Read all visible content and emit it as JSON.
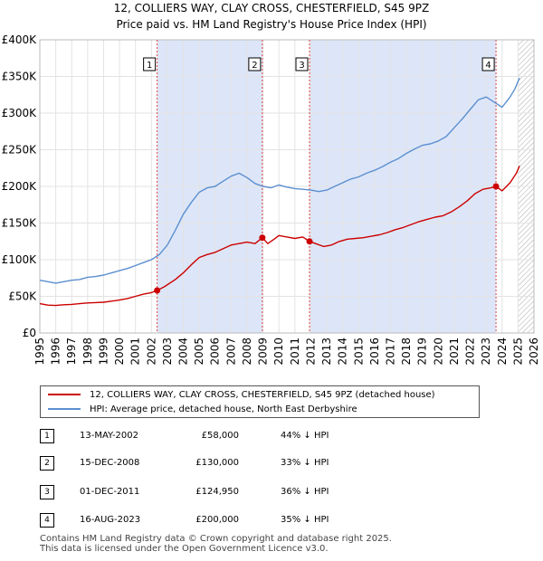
{
  "title_line1": "12, COLLIERS WAY, CLAY CROSS, CHESTERFIELD, S45 9PZ",
  "title_line2": "Price paid vs. HM Land Registry's House Price Index (HPI)",
  "colors": {
    "property": "#cc0000",
    "hpi": "#5b8fd0",
    "shade": "#dde6f8",
    "hatch": "#aaaaaa"
  },
  "chart_data": {
    "type": "line",
    "xlim": [
      1995,
      2026
    ],
    "ylim": [
      0,
      400000
    ],
    "y_ticks": [
      0,
      50000,
      100000,
      150000,
      200000,
      250000,
      300000,
      350000,
      400000
    ],
    "y_tick_labels": [
      "£0",
      "£50K",
      "£100K",
      "£150K",
      "£200K",
      "£250K",
      "£300K",
      "£350K",
      "£400K"
    ],
    "x_ticks": [
      1995,
      1996,
      1997,
      1998,
      1999,
      2000,
      2001,
      2002,
      2003,
      2004,
      2005,
      2006,
      2007,
      2008,
      2009,
      2010,
      2011,
      2012,
      2013,
      2014,
      2015,
      2016,
      2017,
      2018,
      2019,
      2020,
      2021,
      2022,
      2023,
      2024,
      2025,
      2026
    ],
    "forecast_start": 2025.0,
    "series": [
      {
        "name": "12, COLLIERS WAY, CLAY CROSS, CHESTERFIELD, S45 9PZ (detached house)",
        "points": [
          [
            1995,
            40000
          ],
          [
            1995.5,
            38000
          ],
          [
            1996,
            37500
          ],
          [
            1996.5,
            38500
          ],
          [
            1997,
            39000
          ],
          [
            1997.5,
            40000
          ],
          [
            1998,
            41000
          ],
          [
            1998.5,
            41500
          ],
          [
            1999,
            42000
          ],
          [
            1999.5,
            43500
          ],
          [
            2000,
            45000
          ],
          [
            2000.5,
            47000
          ],
          [
            2001,
            50000
          ],
          [
            2001.5,
            53000
          ],
          [
            2002,
            55000
          ],
          [
            2002.36,
            58000
          ],
          [
            2002.8,
            63000
          ],
          [
            2003.5,
            73000
          ],
          [
            2004,
            82000
          ],
          [
            2004.5,
            93000
          ],
          [
            2005,
            103000
          ],
          [
            2005.5,
            107000
          ],
          [
            2006,
            110000
          ],
          [
            2006.5,
            115000
          ],
          [
            2007,
            120000
          ],
          [
            2007.5,
            122000
          ],
          [
            2008,
            124000
          ],
          [
            2008.5,
            122000
          ],
          [
            2008.96,
            130000
          ],
          [
            2009.3,
            122000
          ],
          [
            2009.7,
            128000
          ],
          [
            2010,
            133000
          ],
          [
            2010.5,
            131000
          ],
          [
            2011,
            129000
          ],
          [
            2011.5,
            131000
          ],
          [
            2011.92,
            124950
          ],
          [
            2012.3,
            122000
          ],
          [
            2012.8,
            118000
          ],
          [
            2013.3,
            120000
          ],
          [
            2013.8,
            125000
          ],
          [
            2014.3,
            128000
          ],
          [
            2014.8,
            129000
          ],
          [
            2015.3,
            130000
          ],
          [
            2015.8,
            132000
          ],
          [
            2016.3,
            134000
          ],
          [
            2016.8,
            137000
          ],
          [
            2017.3,
            141000
          ],
          [
            2017.8,
            144000
          ],
          [
            2018.3,
            148000
          ],
          [
            2018.8,
            152000
          ],
          [
            2019.3,
            155000
          ],
          [
            2019.8,
            158000
          ],
          [
            2020.3,
            160000
          ],
          [
            2020.8,
            165000
          ],
          [
            2021.3,
            172000
          ],
          [
            2021.8,
            180000
          ],
          [
            2022.3,
            190000
          ],
          [
            2022.8,
            196000
          ],
          [
            2023.3,
            198000
          ],
          [
            2023.62,
            200000
          ],
          [
            2024,
            194000
          ],
          [
            2024.5,
            205000
          ],
          [
            2024.9,
            218000
          ],
          [
            2025.1,
            228000
          ]
        ]
      },
      {
        "name": "HPI: Average price, detached house, North East Derbyshire",
        "points": [
          [
            1995,
            72000
          ],
          [
            1995.5,
            70000
          ],
          [
            1996,
            68000
          ],
          [
            1996.5,
            70000
          ],
          [
            1997,
            72000
          ],
          [
            1997.5,
            73000
          ],
          [
            1998,
            76000
          ],
          [
            1998.5,
            77000
          ],
          [
            1999,
            79000
          ],
          [
            1999.5,
            82000
          ],
          [
            2000,
            85000
          ],
          [
            2000.5,
            88000
          ],
          [
            2001,
            92000
          ],
          [
            2001.5,
            96000
          ],
          [
            2002,
            100000
          ],
          [
            2002.5,
            107000
          ],
          [
            2003,
            120000
          ],
          [
            2003.5,
            140000
          ],
          [
            2004,
            162000
          ],
          [
            2004.5,
            178000
          ],
          [
            2005,
            192000
          ],
          [
            2005.5,
            198000
          ],
          [
            2006,
            200000
          ],
          [
            2006.5,
            207000
          ],
          [
            2007,
            214000
          ],
          [
            2007.5,
            218000
          ],
          [
            2008,
            212000
          ],
          [
            2008.5,
            204000
          ],
          [
            2009,
            200000
          ],
          [
            2009.5,
            198000
          ],
          [
            2010,
            202000
          ],
          [
            2010.5,
            199000
          ],
          [
            2011,
            197000
          ],
          [
            2011.5,
            196000
          ],
          [
            2012,
            195000
          ],
          [
            2012.5,
            193000
          ],
          [
            2013,
            195000
          ],
          [
            2013.5,
            200000
          ],
          [
            2014,
            205000
          ],
          [
            2014.5,
            210000
          ],
          [
            2015,
            213000
          ],
          [
            2015.5,
            218000
          ],
          [
            2016,
            222000
          ],
          [
            2016.5,
            227000
          ],
          [
            2017,
            233000
          ],
          [
            2017.5,
            238000
          ],
          [
            2018,
            245000
          ],
          [
            2018.5,
            251000
          ],
          [
            2019,
            256000
          ],
          [
            2019.5,
            258000
          ],
          [
            2020,
            262000
          ],
          [
            2020.5,
            268000
          ],
          [
            2021,
            280000
          ],
          [
            2021.5,
            292000
          ],
          [
            2022,
            305000
          ],
          [
            2022.5,
            318000
          ],
          [
            2023,
            322000
          ],
          [
            2023.5,
            315000
          ],
          [
            2024,
            308000
          ],
          [
            2024.5,
            322000
          ],
          [
            2024.8,
            333000
          ],
          [
            2025.1,
            348000
          ]
        ]
      }
    ],
    "sales": [
      {
        "n": "1",
        "x": 2002.36,
        "y": 58000
      },
      {
        "n": "2",
        "x": 2008.96,
        "y": 130000
      },
      {
        "n": "3",
        "x": 2011.92,
        "y": 124950
      },
      {
        "n": "4",
        "x": 2023.62,
        "y": 200000
      }
    ]
  },
  "legend": {
    "property_label": "12, COLLIERS WAY, CLAY CROSS, CHESTERFIELD, S45 9PZ (detached house)",
    "hpi_label": "HPI: Average price, detached house, North East Derbyshire"
  },
  "sales_table": [
    {
      "n": "1",
      "date": "13-MAY-2002",
      "price": "£58,000",
      "hpi": "44% ↓ HPI"
    },
    {
      "n": "2",
      "date": "15-DEC-2008",
      "price": "£130,000",
      "hpi": "33% ↓ HPI"
    },
    {
      "n": "3",
      "date": "01-DEC-2011",
      "price": "£124,950",
      "hpi": "36% ↓ HPI"
    },
    {
      "n": "4",
      "date": "16-AUG-2023",
      "price": "£200,000",
      "hpi": "35% ↓ HPI"
    }
  ],
  "footer_line1": "Contains HM Land Registry data © Crown copyright and database right 2025.",
  "footer_line2": "This data is licensed under the Open Government Licence v3.0."
}
